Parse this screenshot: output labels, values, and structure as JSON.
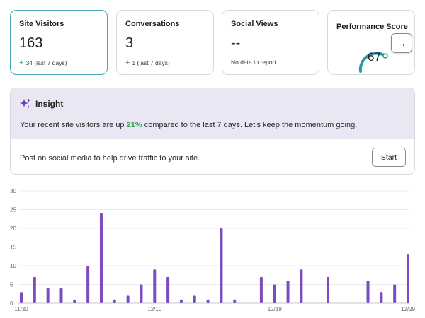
{
  "cards": [
    {
      "title": "Site Visitors",
      "value": "163",
      "delta": "34 (last 7 days)",
      "selected": true
    },
    {
      "title": "Conversations",
      "value": "3",
      "delta": "1 (last 7 days)",
      "selected": false
    },
    {
      "title": "Social Views",
      "value": "--",
      "note": "No data to report",
      "selected": false
    },
    {
      "title": "Performance Score",
      "value": "67",
      "score_fraction": 0.67
    }
  ],
  "insight": {
    "title": "Insight",
    "message_before": "Your recent site visitors are up ",
    "message_pct": "21%",
    "message_after": " compared to the last 7 days. Let’s keep the momentum going.",
    "action_text": "Post on social media to help drive traffic to your site.",
    "start_label": "Start"
  },
  "colors": {
    "accent_teal": "#2f98a8",
    "positive_green": "#2ca24a",
    "bar_purple": "#7b4bbf",
    "insight_bg": "#ebe6f3"
  },
  "icons": {
    "insight": "sparkle-icon",
    "next": "arrow-right-icon",
    "plus": "plus-icon"
  },
  "chart_data": {
    "type": "bar",
    "title": "",
    "xlabel": "",
    "ylabel": "",
    "ylim": [
      0,
      30
    ],
    "yticks": [
      0,
      5,
      10,
      15,
      20,
      25,
      30
    ],
    "grid": true,
    "x_tick_labels": [
      "11/30",
      "12/10",
      "12/19",
      "12/29"
    ],
    "x_tick_indices": [
      0,
      10,
      19,
      29
    ],
    "categories": [
      "11/30",
      "12/01",
      "12/02",
      "12/03",
      "12/04",
      "12/05",
      "12/06",
      "12/07",
      "12/08",
      "12/09",
      "12/10",
      "12/11",
      "12/12",
      "12/13",
      "12/14",
      "12/15",
      "12/16",
      "12/17",
      "12/18",
      "12/19",
      "12/20",
      "12/21",
      "12/22",
      "12/23",
      "12/24",
      "12/25",
      "12/26",
      "12/27",
      "12/28",
      "12/29"
    ],
    "values": [
      3,
      7,
      4,
      4,
      1,
      10,
      24,
      1,
      2,
      5,
      9,
      7,
      1,
      2,
      1,
      20,
      1,
      0,
      7,
      5,
      6,
      9,
      0,
      7,
      0,
      0,
      6,
      3,
      5,
      13
    ]
  }
}
